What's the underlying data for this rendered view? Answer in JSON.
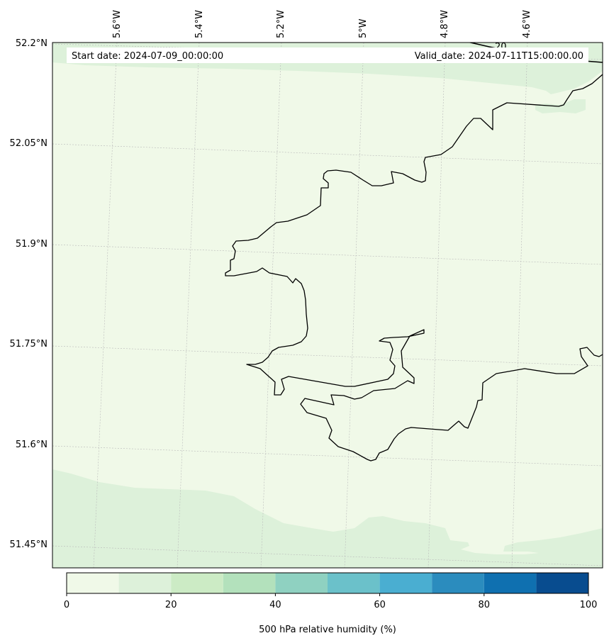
{
  "header": {
    "start_date": "Start date: 2024-07-09_00:00:00",
    "valid_date": "Valid_date: 2024-07-11T15:00:00.00"
  },
  "axes": {
    "longitude_labels": [
      "5.6°W",
      "5.4°W",
      "5.2°W",
      "5°W",
      "4.8°W",
      "4.6°W"
    ],
    "latitude_labels": [
      "52.2°N",
      "52.05°N",
      "51.9°N",
      "51.75°N",
      "51.6°N",
      "51.45°N"
    ]
  },
  "contour": {
    "label": "20"
  },
  "colorbar": {
    "label": "500 hPa relative humidity (%)",
    "ticks": [
      "0",
      "20",
      "40",
      "60",
      "80",
      "100"
    ],
    "levels": [
      0,
      10,
      20,
      30,
      40,
      50,
      60,
      70,
      80,
      90,
      100
    ],
    "colors": [
      "#f0f9e8",
      "#ddf1da",
      "#ccebc5",
      "#b3e1bc",
      "#8fd1c1",
      "#6bc1ca",
      "#4aaed1",
      "#2b8cbe",
      "#0f70b0",
      "#084c8f"
    ]
  },
  "legend_colors": {
    "low_band": "#f0f9e8",
    "second_band": "#ddf1da"
  }
}
